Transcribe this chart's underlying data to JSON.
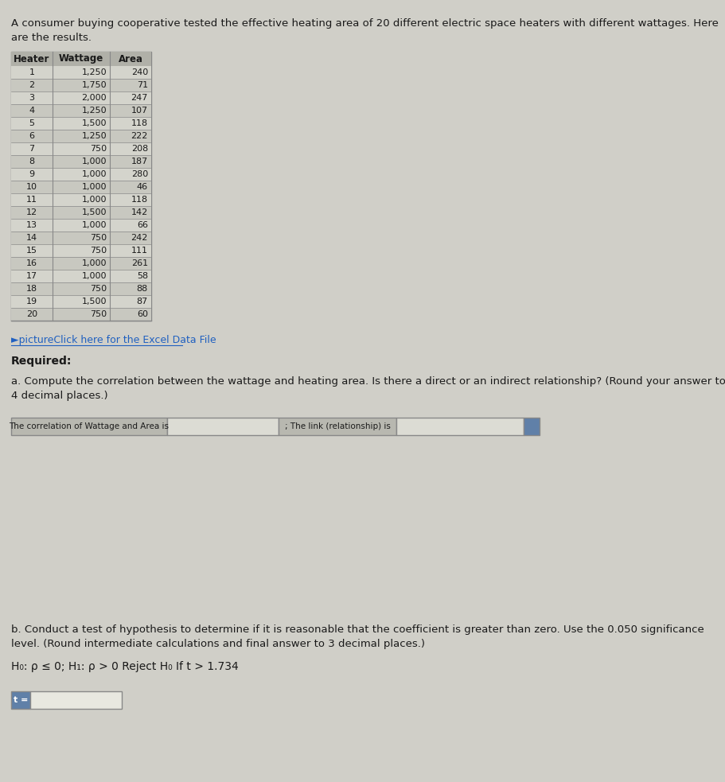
{
  "title_text": "A consumer buying cooperative tested the effective heating area of 20 different electric space heaters with different wattages. Here\nare the results.",
  "heaters": [
    1,
    2,
    3,
    4,
    5,
    6,
    7,
    8,
    9,
    10,
    11,
    12,
    13,
    14,
    15,
    16,
    17,
    18,
    19,
    20
  ],
  "wattages": [
    1250,
    1750,
    2000,
    1250,
    1500,
    1250,
    750,
    1000,
    1000,
    1000,
    1000,
    1500,
    1000,
    750,
    750,
    1000,
    1000,
    750,
    1500,
    750
  ],
  "areas": [
    240,
    71,
    247,
    107,
    118,
    222,
    208,
    187,
    280,
    46,
    118,
    142,
    66,
    242,
    111,
    261,
    58,
    88,
    87,
    60
  ],
  "col_headers": [
    "Heater",
    "Wattage",
    "Area"
  ],
  "excel_link_text": "►pictureClick here for the Excel Data File",
  "required_text": "Required:",
  "part_a_text": "a. Compute the correlation between the wattage and heating area. Is there a direct or an indirect relationship? (Round your answer to\n4 decimal places.)",
  "part_a_label1": "The correlation of Wattage and Area is",
  "part_a_label2": "; The link (relationship) is",
  "part_b_text": "b. Conduct a test of hypothesis to determine if it is reasonable that the coefficient is greater than zero. Use the 0.050 significance\nlevel. (Round intermediate calculations and final answer to 3 decimal places.)",
  "hypothesis_text": "H₀: ρ ≤ 0; H₁: ρ > 0 Reject H₀ If t > 1.734",
  "t_label": "t =",
  "bg_color": "#d0cfc8",
  "table_bg": "#c8c8c0",
  "table_header_bg": "#b0b0a8",
  "input_box_color": "#e8e8e8",
  "link_color": "#2060c0",
  "text_color": "#1a1a1a"
}
